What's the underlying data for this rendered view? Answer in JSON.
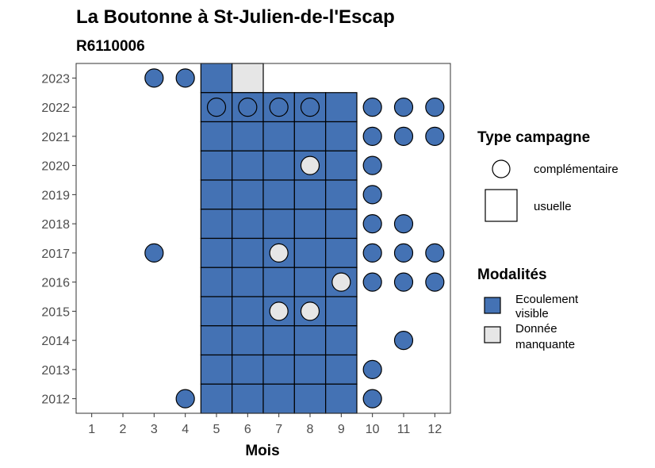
{
  "chart_data": {
    "type": "heatmap",
    "title": "La Boutonne à St-Julien-de-l'Escap",
    "subtitle": "R6110006",
    "xlabel": "Mois",
    "ylabel": "",
    "x_ticks": [
      "1",
      "2",
      "3",
      "4",
      "5",
      "6",
      "7",
      "8",
      "9",
      "10",
      "11",
      "12"
    ],
    "y_ticks": [
      "2012",
      "2013",
      "2014",
      "2015",
      "2016",
      "2017",
      "2018",
      "2019",
      "2020",
      "2021",
      "2022",
      "2023"
    ],
    "xlim": [
      0.5,
      12.5
    ],
    "ylim": [
      2011.5,
      2023.5
    ],
    "grid": false,
    "colors": {
      "Ecoulement visible": "#4472b4",
      "Donnée manquante": "#e6e6e6"
    },
    "legends": [
      {
        "title": "Type campagne",
        "position": "right",
        "items": [
          {
            "label": "complémentaire",
            "shape": "circle"
          },
          {
            "label": "usuelle",
            "shape": "square"
          }
        ]
      },
      {
        "title": "Modalités",
        "position": "right",
        "items": [
          {
            "label_lines": [
              "Ecoulement",
              "visible"
            ],
            "modalite": "Ecoulement visible"
          },
          {
            "label_lines": [
              "Donnée",
              "manquante"
            ],
            "modalite": "Donnée manquante"
          }
        ]
      }
    ],
    "usuelle": [
      {
        "mois": 5,
        "annee": 2023,
        "modalite": "Ecoulement visible"
      },
      {
        "mois": 6,
        "annee": 2023,
        "modalite": "Donnée manquante"
      },
      {
        "mois": 5,
        "annee": 2022,
        "modalite": "Ecoulement visible"
      },
      {
        "mois": 6,
        "annee": 2022,
        "modalite": "Ecoulement visible"
      },
      {
        "mois": 7,
        "annee": 2022,
        "modalite": "Ecoulement visible"
      },
      {
        "mois": 8,
        "annee": 2022,
        "modalite": "Ecoulement visible"
      },
      {
        "mois": 9,
        "annee": 2022,
        "modalite": "Ecoulement visible"
      },
      {
        "mois": 5,
        "annee": 2021,
        "modalite": "Ecoulement visible"
      },
      {
        "mois": 6,
        "annee": 2021,
        "modalite": "Ecoulement visible"
      },
      {
        "mois": 7,
        "annee": 2021,
        "modalite": "Ecoulement visible"
      },
      {
        "mois": 8,
        "annee": 2021,
        "modalite": "Ecoulement visible"
      },
      {
        "mois": 9,
        "annee": 2021,
        "modalite": "Ecoulement visible"
      },
      {
        "mois": 5,
        "annee": 2020,
        "modalite": "Ecoulement visible"
      },
      {
        "mois": 6,
        "annee": 2020,
        "modalite": "Ecoulement visible"
      },
      {
        "mois": 7,
        "annee": 2020,
        "modalite": "Ecoulement visible"
      },
      {
        "mois": 8,
        "annee": 2020,
        "modalite": "Ecoulement visible"
      },
      {
        "mois": 9,
        "annee": 2020,
        "modalite": "Ecoulement visible"
      },
      {
        "mois": 5,
        "annee": 2019,
        "modalite": "Ecoulement visible"
      },
      {
        "mois": 6,
        "annee": 2019,
        "modalite": "Ecoulement visible"
      },
      {
        "mois": 7,
        "annee": 2019,
        "modalite": "Ecoulement visible"
      },
      {
        "mois": 8,
        "annee": 2019,
        "modalite": "Ecoulement visible"
      },
      {
        "mois": 9,
        "annee": 2019,
        "modalite": "Ecoulement visible"
      },
      {
        "mois": 5,
        "annee": 2018,
        "modalite": "Ecoulement visible"
      },
      {
        "mois": 6,
        "annee": 2018,
        "modalite": "Ecoulement visible"
      },
      {
        "mois": 7,
        "annee": 2018,
        "modalite": "Ecoulement visible"
      },
      {
        "mois": 8,
        "annee": 2018,
        "modalite": "Ecoulement visible"
      },
      {
        "mois": 9,
        "annee": 2018,
        "modalite": "Ecoulement visible"
      },
      {
        "mois": 5,
        "annee": 2017,
        "modalite": "Ecoulement visible"
      },
      {
        "mois": 6,
        "annee": 2017,
        "modalite": "Ecoulement visible"
      },
      {
        "mois": 7,
        "annee": 2017,
        "modalite": "Ecoulement visible"
      },
      {
        "mois": 8,
        "annee": 2017,
        "modalite": "Ecoulement visible"
      },
      {
        "mois": 9,
        "annee": 2017,
        "modalite": "Ecoulement visible"
      },
      {
        "mois": 5,
        "annee": 2016,
        "modalite": "Ecoulement visible"
      },
      {
        "mois": 6,
        "annee": 2016,
        "modalite": "Ecoulement visible"
      },
      {
        "mois": 7,
        "annee": 2016,
        "modalite": "Ecoulement visible"
      },
      {
        "mois": 8,
        "annee": 2016,
        "modalite": "Ecoulement visible"
      },
      {
        "mois": 9,
        "annee": 2016,
        "modalite": "Ecoulement visible"
      },
      {
        "mois": 5,
        "annee": 2015,
        "modalite": "Ecoulement visible"
      },
      {
        "mois": 6,
        "annee": 2015,
        "modalite": "Ecoulement visible"
      },
      {
        "mois": 7,
        "annee": 2015,
        "modalite": "Ecoulement visible"
      },
      {
        "mois": 8,
        "annee": 2015,
        "modalite": "Ecoulement visible"
      },
      {
        "mois": 9,
        "annee": 2015,
        "modalite": "Ecoulement visible"
      },
      {
        "mois": 5,
        "annee": 2014,
        "modalite": "Ecoulement visible"
      },
      {
        "mois": 6,
        "annee": 2014,
        "modalite": "Ecoulement visible"
      },
      {
        "mois": 7,
        "annee": 2014,
        "modalite": "Ecoulement visible"
      },
      {
        "mois": 8,
        "annee": 2014,
        "modalite": "Ecoulement visible"
      },
      {
        "mois": 9,
        "annee": 2014,
        "modalite": "Ecoulement visible"
      },
      {
        "mois": 5,
        "annee": 2013,
        "modalite": "Ecoulement visible"
      },
      {
        "mois": 6,
        "annee": 2013,
        "modalite": "Ecoulement visible"
      },
      {
        "mois": 7,
        "annee": 2013,
        "modalite": "Ecoulement visible"
      },
      {
        "mois": 8,
        "annee": 2013,
        "modalite": "Ecoulement visible"
      },
      {
        "mois": 9,
        "annee": 2013,
        "modalite": "Ecoulement visible"
      },
      {
        "mois": 5,
        "annee": 2012,
        "modalite": "Ecoulement visible"
      },
      {
        "mois": 6,
        "annee": 2012,
        "modalite": "Ecoulement visible"
      },
      {
        "mois": 7,
        "annee": 2012,
        "modalite": "Ecoulement visible"
      },
      {
        "mois": 8,
        "annee": 2012,
        "modalite": "Ecoulement visible"
      },
      {
        "mois": 9,
        "annee": 2012,
        "modalite": "Ecoulement visible"
      }
    ],
    "complementaire": [
      {
        "mois": 3,
        "annee": 2023,
        "modalite": "Ecoulement visible"
      },
      {
        "mois": 4,
        "annee": 2023,
        "modalite": "Ecoulement visible"
      },
      {
        "mois": 5,
        "annee": 2022,
        "modalite": "Ecoulement visible"
      },
      {
        "mois": 6,
        "annee": 2022,
        "modalite": "Ecoulement visible"
      },
      {
        "mois": 7,
        "annee": 2022,
        "modalite": "Ecoulement visible"
      },
      {
        "mois": 8,
        "annee": 2022,
        "modalite": "Ecoulement visible"
      },
      {
        "mois": 10,
        "annee": 2022,
        "modalite": "Ecoulement visible"
      },
      {
        "mois": 11,
        "annee": 2022,
        "modalite": "Ecoulement visible"
      },
      {
        "mois": 12,
        "annee": 2022,
        "modalite": "Ecoulement visible"
      },
      {
        "mois": 10,
        "annee": 2021,
        "modalite": "Ecoulement visible"
      },
      {
        "mois": 11,
        "annee": 2021,
        "modalite": "Ecoulement visible"
      },
      {
        "mois": 12,
        "annee": 2021,
        "modalite": "Ecoulement visible"
      },
      {
        "mois": 8,
        "annee": 2020,
        "modalite": "Donnée manquante"
      },
      {
        "mois": 10,
        "annee": 2020,
        "modalite": "Ecoulement visible"
      },
      {
        "mois": 10,
        "annee": 2019,
        "modalite": "Ecoulement visible"
      },
      {
        "mois": 10,
        "annee": 2018,
        "modalite": "Ecoulement visible"
      },
      {
        "mois": 11,
        "annee": 2018,
        "modalite": "Ecoulement visible"
      },
      {
        "mois": 3,
        "annee": 2017,
        "modalite": "Ecoulement visible"
      },
      {
        "mois": 7,
        "annee": 2017,
        "modalite": "Donnée manquante"
      },
      {
        "mois": 10,
        "annee": 2017,
        "modalite": "Ecoulement visible"
      },
      {
        "mois": 11,
        "annee": 2017,
        "modalite": "Ecoulement visible"
      },
      {
        "mois": 12,
        "annee": 2017,
        "modalite": "Ecoulement visible"
      },
      {
        "mois": 9,
        "annee": 2016,
        "modalite": "Donnée manquante"
      },
      {
        "mois": 10,
        "annee": 2016,
        "modalite": "Ecoulement visible"
      },
      {
        "mois": 11,
        "annee": 2016,
        "modalite": "Ecoulement visible"
      },
      {
        "mois": 12,
        "annee": 2016,
        "modalite": "Ecoulement visible"
      },
      {
        "mois": 7,
        "annee": 2015,
        "modalite": "Donnée manquante"
      },
      {
        "mois": 8,
        "annee": 2015,
        "modalite": "Donnée manquante"
      },
      {
        "mois": 11,
        "annee": 2014,
        "modalite": "Ecoulement visible"
      },
      {
        "mois": 10,
        "annee": 2013,
        "modalite": "Ecoulement visible"
      },
      {
        "mois": 4,
        "annee": 2012,
        "modalite": "Ecoulement visible"
      },
      {
        "mois": 10,
        "annee": 2012,
        "modalite": "Ecoulement visible"
      }
    ]
  }
}
